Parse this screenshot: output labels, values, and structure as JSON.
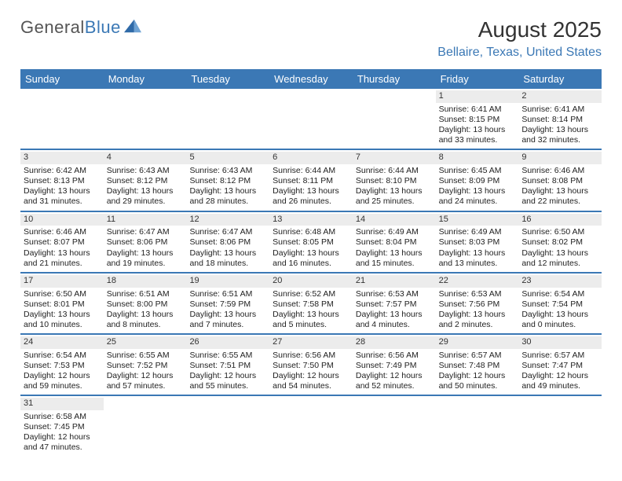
{
  "brand": {
    "name_a": "General",
    "name_b": "Blue"
  },
  "title": "August 2025",
  "location": "Bellaire, Texas, United States",
  "day_headers": [
    "Sunday",
    "Monday",
    "Tuesday",
    "Wednesday",
    "Thursday",
    "Friday",
    "Saturday"
  ],
  "colors": {
    "header_bg": "#3b78b5",
    "header_text": "#ffffff",
    "rule": "#3b78b5",
    "daynum_bg": "#ececec",
    "text": "#222222",
    "subtitle": "#3b78b5",
    "title": "#333333"
  },
  "style": {
    "title_fontsize": 28,
    "subtitle_fontsize": 16,
    "dayhdr_fontsize": 13,
    "cell_fontsize": 10.5
  },
  "weeks": [
    [
      {
        "n": "",
        "lines": []
      },
      {
        "n": "",
        "lines": []
      },
      {
        "n": "",
        "lines": []
      },
      {
        "n": "",
        "lines": []
      },
      {
        "n": "",
        "lines": []
      },
      {
        "n": "1",
        "lines": [
          "Sunrise: 6:41 AM",
          "Sunset: 8:15 PM",
          "Daylight: 13 hours and 33 minutes."
        ]
      },
      {
        "n": "2",
        "lines": [
          "Sunrise: 6:41 AM",
          "Sunset: 8:14 PM",
          "Daylight: 13 hours and 32 minutes."
        ]
      }
    ],
    [
      {
        "n": "3",
        "lines": [
          "Sunrise: 6:42 AM",
          "Sunset: 8:13 PM",
          "Daylight: 13 hours and 31 minutes."
        ]
      },
      {
        "n": "4",
        "lines": [
          "Sunrise: 6:43 AM",
          "Sunset: 8:12 PM",
          "Daylight: 13 hours and 29 minutes."
        ]
      },
      {
        "n": "5",
        "lines": [
          "Sunrise: 6:43 AM",
          "Sunset: 8:12 PM",
          "Daylight: 13 hours and 28 minutes."
        ]
      },
      {
        "n": "6",
        "lines": [
          "Sunrise: 6:44 AM",
          "Sunset: 8:11 PM",
          "Daylight: 13 hours and 26 minutes."
        ]
      },
      {
        "n": "7",
        "lines": [
          "Sunrise: 6:44 AM",
          "Sunset: 8:10 PM",
          "Daylight: 13 hours and 25 minutes."
        ]
      },
      {
        "n": "8",
        "lines": [
          "Sunrise: 6:45 AM",
          "Sunset: 8:09 PM",
          "Daylight: 13 hours and 24 minutes."
        ]
      },
      {
        "n": "9",
        "lines": [
          "Sunrise: 6:46 AM",
          "Sunset: 8:08 PM",
          "Daylight: 13 hours and 22 minutes."
        ]
      }
    ],
    [
      {
        "n": "10",
        "lines": [
          "Sunrise: 6:46 AM",
          "Sunset: 8:07 PM",
          "Daylight: 13 hours and 21 minutes."
        ]
      },
      {
        "n": "11",
        "lines": [
          "Sunrise: 6:47 AM",
          "Sunset: 8:06 PM",
          "Daylight: 13 hours and 19 minutes."
        ]
      },
      {
        "n": "12",
        "lines": [
          "Sunrise: 6:47 AM",
          "Sunset: 8:06 PM",
          "Daylight: 13 hours and 18 minutes."
        ]
      },
      {
        "n": "13",
        "lines": [
          "Sunrise: 6:48 AM",
          "Sunset: 8:05 PM",
          "Daylight: 13 hours and 16 minutes."
        ]
      },
      {
        "n": "14",
        "lines": [
          "Sunrise: 6:49 AM",
          "Sunset: 8:04 PM",
          "Daylight: 13 hours and 15 minutes."
        ]
      },
      {
        "n": "15",
        "lines": [
          "Sunrise: 6:49 AM",
          "Sunset: 8:03 PM",
          "Daylight: 13 hours and 13 minutes."
        ]
      },
      {
        "n": "16",
        "lines": [
          "Sunrise: 6:50 AM",
          "Sunset: 8:02 PM",
          "Daylight: 13 hours and 12 minutes."
        ]
      }
    ],
    [
      {
        "n": "17",
        "lines": [
          "Sunrise: 6:50 AM",
          "Sunset: 8:01 PM",
          "Daylight: 13 hours and 10 minutes."
        ]
      },
      {
        "n": "18",
        "lines": [
          "Sunrise: 6:51 AM",
          "Sunset: 8:00 PM",
          "Daylight: 13 hours and 8 minutes."
        ]
      },
      {
        "n": "19",
        "lines": [
          "Sunrise: 6:51 AM",
          "Sunset: 7:59 PM",
          "Daylight: 13 hours and 7 minutes."
        ]
      },
      {
        "n": "20",
        "lines": [
          "Sunrise: 6:52 AM",
          "Sunset: 7:58 PM",
          "Daylight: 13 hours and 5 minutes."
        ]
      },
      {
        "n": "21",
        "lines": [
          "Sunrise: 6:53 AM",
          "Sunset: 7:57 PM",
          "Daylight: 13 hours and 4 minutes."
        ]
      },
      {
        "n": "22",
        "lines": [
          "Sunrise: 6:53 AM",
          "Sunset: 7:56 PM",
          "Daylight: 13 hours and 2 minutes."
        ]
      },
      {
        "n": "23",
        "lines": [
          "Sunrise: 6:54 AM",
          "Sunset: 7:54 PM",
          "Daylight: 13 hours and 0 minutes."
        ]
      }
    ],
    [
      {
        "n": "24",
        "lines": [
          "Sunrise: 6:54 AM",
          "Sunset: 7:53 PM",
          "Daylight: 12 hours and 59 minutes."
        ]
      },
      {
        "n": "25",
        "lines": [
          "Sunrise: 6:55 AM",
          "Sunset: 7:52 PM",
          "Daylight: 12 hours and 57 minutes."
        ]
      },
      {
        "n": "26",
        "lines": [
          "Sunrise: 6:55 AM",
          "Sunset: 7:51 PM",
          "Daylight: 12 hours and 55 minutes."
        ]
      },
      {
        "n": "27",
        "lines": [
          "Sunrise: 6:56 AM",
          "Sunset: 7:50 PM",
          "Daylight: 12 hours and 54 minutes."
        ]
      },
      {
        "n": "28",
        "lines": [
          "Sunrise: 6:56 AM",
          "Sunset: 7:49 PM",
          "Daylight: 12 hours and 52 minutes."
        ]
      },
      {
        "n": "29",
        "lines": [
          "Sunrise: 6:57 AM",
          "Sunset: 7:48 PM",
          "Daylight: 12 hours and 50 minutes."
        ]
      },
      {
        "n": "30",
        "lines": [
          "Sunrise: 6:57 AM",
          "Sunset: 7:47 PM",
          "Daylight: 12 hours and 49 minutes."
        ]
      }
    ],
    [
      {
        "n": "31",
        "lines": [
          "Sunrise: 6:58 AM",
          "Sunset: 7:45 PM",
          "Daylight: 12 hours and 47 minutes."
        ]
      },
      {
        "n": "",
        "lines": []
      },
      {
        "n": "",
        "lines": []
      },
      {
        "n": "",
        "lines": []
      },
      {
        "n": "",
        "lines": []
      },
      {
        "n": "",
        "lines": []
      },
      {
        "n": "",
        "lines": []
      }
    ]
  ]
}
